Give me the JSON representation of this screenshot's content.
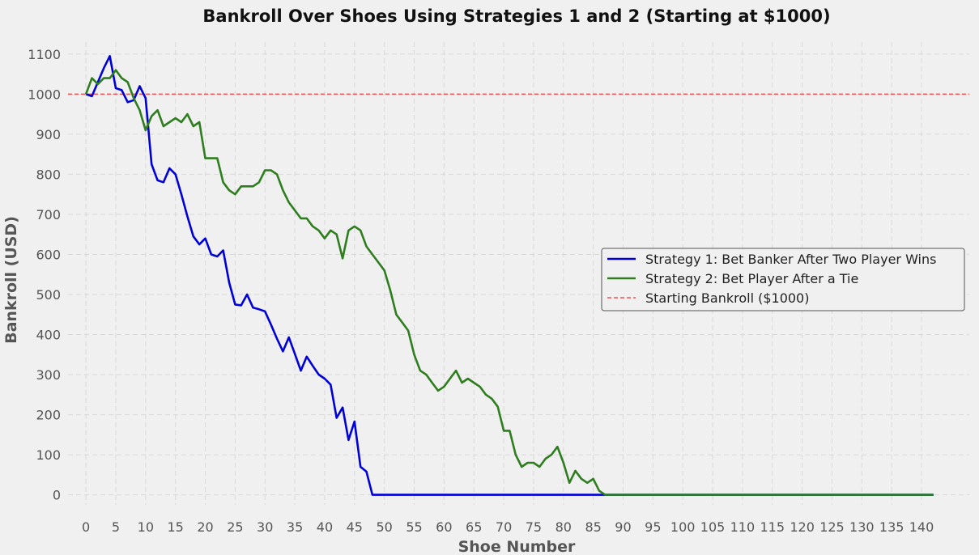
{
  "chart_data": {
    "type": "line",
    "title": "Bankroll Over Shoes Using Strategies 1 and 2 (Starting at $1000)",
    "xlabel": "Shoe Number",
    "ylabel": "Bankroll (USD)",
    "xlim": [
      -3,
      148
    ],
    "ylim": [
      -25,
      1130
    ],
    "xticks": [
      0,
      5,
      10,
      15,
      20,
      25,
      30,
      35,
      40,
      45,
      50,
      55,
      60,
      65,
      70,
      75,
      80,
      85,
      90,
      95,
      100,
      105,
      110,
      115,
      120,
      125,
      130,
      135,
      140
    ],
    "xtick_labels": [
      "0",
      "5",
      "10",
      "15",
      "20",
      "25",
      "30",
      "35",
      "40",
      "45",
      "50",
      "55",
      "60",
      "65",
      "70",
      "75",
      "80",
      "85",
      "90",
      "95",
      "100",
      "105",
      "110",
      "115",
      "120",
      "125",
      "130",
      "135",
      "140"
    ],
    "yticks": [
      0,
      100,
      200,
      300,
      400,
      500,
      600,
      700,
      800,
      900,
      1000,
      1100
    ],
    "ytick_labels": [
      "0",
      "100",
      "200",
      "300",
      "400",
      "500",
      "600",
      "700",
      "800",
      "900",
      "1000",
      "1100"
    ],
    "grid": true,
    "legend_position": "center-right",
    "reference_line": {
      "name": "Starting Bankroll ($1000)",
      "y": 1000,
      "color": "#e45756",
      "style": "dashed"
    },
    "series": [
      {
        "name": "Strategy 1: Bet Banker After Two Player Wins",
        "color": "#0000d6",
        "x": [
          0,
          1,
          2,
          3,
          4,
          5,
          6,
          7,
          8,
          9,
          10,
          11,
          12,
          13,
          14,
          15,
          16,
          17,
          18,
          19,
          20,
          21,
          22,
          23,
          24,
          25,
          26,
          27,
          28,
          29,
          30,
          31,
          32,
          33,
          34,
          35,
          36,
          37,
          38,
          39,
          40,
          41,
          42,
          43,
          44,
          45,
          46,
          47,
          48,
          49,
          50,
          55,
          60,
          65,
          70,
          75,
          80,
          85,
          86,
          87,
          90,
          95,
          100,
          105,
          110,
          115,
          120,
          125,
          130,
          135,
          140,
          142
        ],
        "y": [
          1000,
          995,
          1030,
          1065,
          1095,
          1015,
          1010,
          980,
          985,
          1020,
          990,
          825,
          785,
          780,
          815,
          800,
          750,
          695,
          645,
          625,
          640,
          600,
          595,
          610,
          530,
          475,
          473,
          500,
          467,
          463,
          458,
          425,
          390,
          358,
          393,
          352,
          310,
          345,
          322,
          300,
          290,
          275,
          192,
          218,
          137,
          183,
          70,
          58,
          0,
          0,
          0,
          0,
          0,
          0,
          0,
          0,
          0,
          0,
          0,
          0,
          0,
          0,
          0,
          0,
          0,
          0,
          0,
          0,
          0,
          0,
          0,
          0
        ]
      },
      {
        "name": "Strategy 2: Bet Player After a Tie",
        "color": "#2e7d1e",
        "x": [
          0,
          1,
          2,
          3,
          4,
          5,
          6,
          7,
          8,
          9,
          10,
          11,
          12,
          13,
          14,
          15,
          16,
          17,
          18,
          19,
          20,
          21,
          22,
          23,
          24,
          25,
          26,
          27,
          28,
          29,
          30,
          31,
          32,
          33,
          34,
          35,
          36,
          37,
          38,
          39,
          40,
          41,
          42,
          43,
          44,
          45,
          46,
          47,
          48,
          49,
          50,
          51,
          52,
          53,
          54,
          55,
          56,
          57,
          58,
          59,
          60,
          61,
          62,
          63,
          64,
          65,
          66,
          67,
          68,
          69,
          70,
          71,
          72,
          73,
          74,
          75,
          76,
          77,
          78,
          79,
          80,
          81,
          82,
          83,
          84,
          85,
          86,
          87,
          90,
          95,
          100,
          105,
          110,
          115,
          120,
          125,
          130,
          135,
          140,
          142
        ],
        "y": [
          1000,
          1040,
          1025,
          1040,
          1040,
          1060,
          1040,
          1030,
          990,
          960,
          910,
          945,
          960,
          920,
          930,
          940,
          930,
          950,
          920,
          930,
          840,
          840,
          840,
          780,
          760,
          750,
          770,
          770,
          770,
          780,
          810,
          810,
          800,
          760,
          730,
          710,
          690,
          690,
          670,
          660,
          640,
          660,
          650,
          590,
          660,
          670,
          660,
          620,
          600,
          580,
          560,
          510,
          450,
          430,
          410,
          350,
          310,
          300,
          280,
          260,
          270,
          290,
          310,
          280,
          290,
          280,
          270,
          250,
          240,
          220,
          160,
          160,
          100,
          70,
          80,
          80,
          70,
          90,
          100,
          120,
          80,
          30,
          60,
          40,
          30,
          40,
          10,
          0,
          0,
          0,
          0,
          0,
          0,
          0,
          0,
          0,
          0,
          0,
          0,
          0
        ]
      }
    ]
  }
}
